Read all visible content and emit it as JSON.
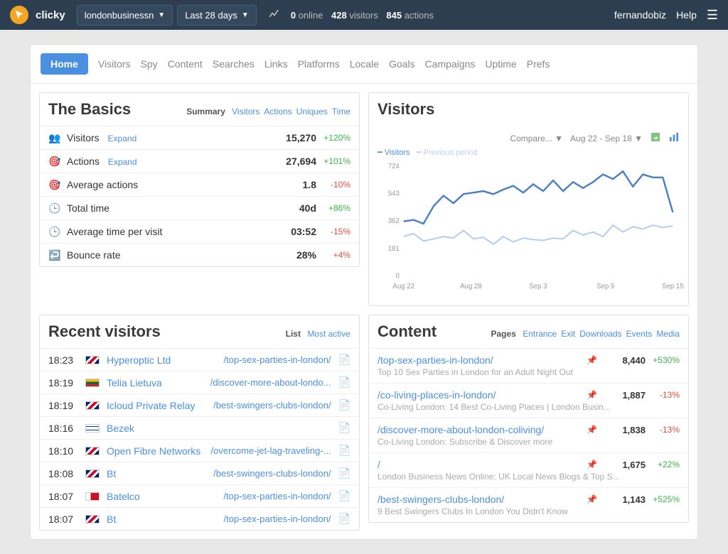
{
  "topbar": {
    "brand": "clicky",
    "site_selector": "londonbusinessn",
    "range_selector": "Last 28 days",
    "stats": {
      "online": "0",
      "online_lbl": "online",
      "visitors": "428",
      "visitors_lbl": "visitors",
      "actions": "845",
      "actions_lbl": "actions"
    },
    "user": "fernandobiz",
    "help": "Help"
  },
  "nav": [
    "Home",
    "Visitors",
    "Spy",
    "Content",
    "Searches",
    "Links",
    "Platforms",
    "Locale",
    "Goals",
    "Campaigns",
    "Uptime",
    "Prefs"
  ],
  "basics": {
    "title": "The Basics",
    "summary": "Summary",
    "links": [
      "Visitors",
      "Actions",
      "Uniques",
      "Time"
    ],
    "rows": [
      {
        "icon": "👥",
        "label": "Visitors",
        "expand": "Expand",
        "value": "15,270",
        "delta": "+120%",
        "pos": true
      },
      {
        "icon": "🎯",
        "label": "Actions",
        "expand": "Expand",
        "value": "27,694",
        "delta": "+101%",
        "pos": true
      },
      {
        "icon": "🎯",
        "label": "Average actions",
        "value": "1.8",
        "delta": "-10%",
        "pos": false
      },
      {
        "icon": "🕒",
        "label": "Total time",
        "value": "40d",
        "delta": "+86%",
        "pos": true
      },
      {
        "icon": "🕒",
        "label": "Average time per visit",
        "value": "03:52",
        "delta": "-15%",
        "pos": false
      },
      {
        "icon": "↩️",
        "label": "Bounce rate",
        "value": "28%",
        "delta": "+4%",
        "pos": false
      }
    ]
  },
  "visitors_chart": {
    "title": "Visitors",
    "compare": "Compare...",
    "range": "Aug 22 - Sep 18",
    "legend": {
      "a": "Visitors",
      "b": "Previous period"
    },
    "y_ticks": [
      0,
      181,
      362,
      543,
      724
    ],
    "x_labels": [
      "Aug 22",
      "Aug 28",
      "Sep 3",
      "Sep 9",
      "Sep 15"
    ],
    "colors": {
      "visitors": "#4a7fc4",
      "previous": "#aecdf0",
      "grid": "#eeeeee",
      "axis_text": "#999999"
    },
    "series_visitors": [
      360,
      370,
      345,
      460,
      530,
      480,
      540,
      550,
      560,
      540,
      570,
      595,
      550,
      605,
      560,
      630,
      560,
      620,
      580,
      620,
      670,
      640,
      690,
      590,
      670,
      650,
      650,
      420
    ],
    "series_previous": [
      260,
      280,
      230,
      245,
      260,
      250,
      300,
      245,
      255,
      210,
      260,
      225,
      250,
      240,
      235,
      250,
      245,
      300,
      270,
      290,
      260,
      335,
      290,
      325,
      310,
      335,
      320,
      330
    ]
  },
  "recent": {
    "title": "Recent visitors",
    "list": "List",
    "most_active": "Most active",
    "rows": [
      {
        "t": "18:23",
        "flag": "gb",
        "isp": "Hyperoptic Ltd",
        "url": "/top-sex-parties-in-london/"
      },
      {
        "t": "18:19",
        "flag": "lt",
        "isp": "Telia Lietuva",
        "url": "/discover-more-about-londo..."
      },
      {
        "t": "18:19",
        "flag": "gb",
        "isp": "Icloud Private Relay",
        "url": "/best-swingers-clubs-london/"
      },
      {
        "t": "18:16",
        "flag": "il",
        "isp": "Bezek",
        "url": ""
      },
      {
        "t": "18:10",
        "flag": "gb",
        "isp": "Open Fibre Networks",
        "url": "/overcome-jet-lag-traveling-..."
      },
      {
        "t": "18:08",
        "flag": "gb",
        "isp": "Bt",
        "url": "/best-swingers-clubs-london/"
      },
      {
        "t": "18:07",
        "flag": "bh",
        "isp": "Batelco",
        "url": "/top-sex-parties-in-london/"
      },
      {
        "t": "18:07",
        "flag": "gb",
        "isp": "Bt",
        "url": "/top-sex-parties-in-london/"
      }
    ]
  },
  "content": {
    "title": "Content",
    "tabs_lbl": "Pages",
    "tabs": [
      "Entrance",
      "Exit",
      "Downloads",
      "Events",
      "Media"
    ],
    "rows": [
      {
        "path": "/top-sex-parties-in-london/",
        "sub": "Top 10 Sex Parties in London for an Adult Night Out",
        "cnt": "8,440",
        "delta": "+530%",
        "pos": true
      },
      {
        "path": "/co-living-places-in-london/",
        "sub": "Co-Living London: 14 Best Co-Living Places | London Busin...",
        "cnt": "1,887",
        "delta": "-13%",
        "pos": false
      },
      {
        "path": "/discover-more-about-london-coliving/",
        "sub": "Co-Living London: Subscribe & Discover more",
        "cnt": "1,838",
        "delta": "-13%",
        "pos": false
      },
      {
        "path": "/",
        "sub": "London Business News Online: UK Local News Blogs & Top S...",
        "cnt": "1,675",
        "delta": "+22%",
        "pos": true
      },
      {
        "path": "/best-swingers-clubs-london/",
        "sub": "9 Best Swingers Clubs In London You Didn't Know",
        "cnt": "1,143",
        "delta": "+525%",
        "pos": true
      }
    ]
  },
  "flags": {
    "gb": "linear-gradient(135deg,#012169 25%,#fff 25%,#fff 40%,#c8102e 40%,#c8102e 60%,#fff 60%,#fff 75%,#012169 75%)",
    "lt": "linear-gradient(#fdb913 33%,#006a44 33%,#006a44 66%,#c1272d 66%)",
    "il": "linear-gradient(#fff 20%,#0038b8 20%,#0038b8 30%,#fff 30%,#fff 70%,#0038b8 70%,#0038b8 80%,#fff 80%)",
    "bh": "linear-gradient(90deg,#fff 35%,#ce1126 35%)"
  }
}
